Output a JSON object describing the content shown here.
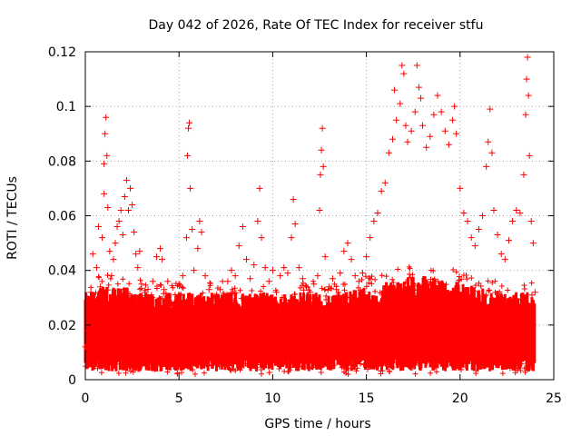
{
  "chart_data": {
    "type": "scatter",
    "title": "Day 042 of 2026, Rate Of TEC Index for receiver stfu",
    "xlabel": "GPS time / hours",
    "ylabel": "ROTI / TECUs",
    "xlim": [
      0,
      25
    ],
    "ylim": [
      0,
      0.12
    ],
    "x_ticks": [
      0,
      5,
      10,
      15,
      20,
      25
    ],
    "x_tick_labels": [
      "0",
      "5",
      "10",
      "15",
      "20",
      "25"
    ],
    "y_ticks": [
      0,
      0.02,
      0.04,
      0.06,
      0.08,
      0.1,
      0.12
    ],
    "y_tick_labels": [
      "0",
      "0.02",
      "0.04",
      "0.06",
      "0.08",
      "0.1",
      "0.12"
    ],
    "grid": true,
    "marker": "+",
    "series": [
      {
        "name": "ROTI",
        "color": "#ff0000",
        "points": [
          [
            0.0,
            0.012
          ],
          [
            0.1,
            0.018
          ],
          [
            0.2,
            0.025
          ],
          [
            0.3,
            0.032
          ],
          [
            0.4,
            0.046
          ],
          [
            0.5,
            0.028
          ],
          [
            0.6,
            0.041
          ],
          [
            0.7,
            0.056
          ],
          [
            0.8,
            0.034
          ],
          [
            0.9,
            0.052
          ],
          [
            1.0,
            0.068
          ],
          [
            1.0,
            0.079
          ],
          [
            1.05,
            0.09
          ],
          [
            1.1,
            0.096
          ],
          [
            1.15,
            0.082
          ],
          [
            1.2,
            0.063
          ],
          [
            1.3,
            0.047
          ],
          [
            1.4,
            0.038
          ],
          [
            1.5,
            0.044
          ],
          [
            1.6,
            0.05
          ],
          [
            1.7,
            0.056
          ],
          [
            1.8,
            0.058
          ],
          [
            1.9,
            0.062
          ],
          [
            2.0,
            0.053
          ],
          [
            2.1,
            0.067
          ],
          [
            2.2,
            0.073
          ],
          [
            2.3,
            0.062
          ],
          [
            2.4,
            0.07
          ],
          [
            2.5,
            0.064
          ],
          [
            2.6,
            0.054
          ],
          [
            2.7,
            0.046
          ],
          [
            2.8,
            0.041
          ],
          [
            2.9,
            0.047
          ],
          [
            3.0,
            0.035
          ],
          [
            3.2,
            0.032
          ],
          [
            3.4,
            0.03
          ],
          [
            3.6,
            0.036
          ],
          [
            3.8,
            0.045
          ],
          [
            4.0,
            0.048
          ],
          [
            4.1,
            0.044
          ],
          [
            4.2,
            0.033
          ],
          [
            4.4,
            0.036
          ],
          [
            4.6,
            0.028
          ],
          [
            4.8,
            0.025
          ],
          [
            5.0,
            0.031
          ],
          [
            5.2,
            0.038
          ],
          [
            5.4,
            0.052
          ],
          [
            5.45,
            0.082
          ],
          [
            5.5,
            0.092
          ],
          [
            5.55,
            0.094
          ],
          [
            5.6,
            0.07
          ],
          [
            5.7,
            0.055
          ],
          [
            5.8,
            0.04
          ],
          [
            6.0,
            0.048
          ],
          [
            6.1,
            0.058
          ],
          [
            6.2,
            0.054
          ],
          [
            6.4,
            0.038
          ],
          [
            6.6,
            0.033
          ],
          [
            6.8,
            0.029
          ],
          [
            7.0,
            0.027
          ],
          [
            7.2,
            0.033
          ],
          [
            7.4,
            0.031
          ],
          [
            7.6,
            0.036
          ],
          [
            7.8,
            0.04
          ],
          [
            8.0,
            0.038
          ],
          [
            8.2,
            0.049
          ],
          [
            8.4,
            0.056
          ],
          [
            8.6,
            0.044
          ],
          [
            8.8,
            0.037
          ],
          [
            9.0,
            0.042
          ],
          [
            9.2,
            0.058
          ],
          [
            9.3,
            0.07
          ],
          [
            9.4,
            0.052
          ],
          [
            9.6,
            0.041
          ],
          [
            9.8,
            0.036
          ],
          [
            10.0,
            0.04
          ],
          [
            10.2,
            0.032
          ],
          [
            10.4,
            0.038
          ],
          [
            10.6,
            0.041
          ],
          [
            10.8,
            0.039
          ],
          [
            11.0,
            0.052
          ],
          [
            11.1,
            0.066
          ],
          [
            11.2,
            0.057
          ],
          [
            11.4,
            0.041
          ],
          [
            11.6,
            0.037
          ],
          [
            11.8,
            0.034
          ],
          [
            12.0,
            0.032
          ],
          [
            12.2,
            0.035
          ],
          [
            12.4,
            0.038
          ],
          [
            12.5,
            0.062
          ],
          [
            12.55,
            0.075
          ],
          [
            12.6,
            0.084
          ],
          [
            12.65,
            0.092
          ],
          [
            12.7,
            0.078
          ],
          [
            12.8,
            0.045
          ],
          [
            13.0,
            0.034
          ],
          [
            13.2,
            0.037
          ],
          [
            13.4,
            0.033
          ],
          [
            13.6,
            0.039
          ],
          [
            13.8,
            0.047
          ],
          [
            14.0,
            0.05
          ],
          [
            14.2,
            0.044
          ],
          [
            14.4,
            0.038
          ],
          [
            14.6,
            0.036
          ],
          [
            14.8,
            0.039
          ],
          [
            15.0,
            0.045
          ],
          [
            15.2,
            0.052
          ],
          [
            15.4,
            0.058
          ],
          [
            15.6,
            0.061
          ],
          [
            15.8,
            0.069
          ],
          [
            16.0,
            0.072
          ],
          [
            16.2,
            0.083
          ],
          [
            16.4,
            0.088
          ],
          [
            16.5,
            0.106
          ],
          [
            16.6,
            0.095
          ],
          [
            16.8,
            0.101
          ],
          [
            16.9,
            0.115
          ],
          [
            17.0,
            0.112
          ],
          [
            17.1,
            0.093
          ],
          [
            17.2,
            0.087
          ],
          [
            17.4,
            0.091
          ],
          [
            17.6,
            0.098
          ],
          [
            17.7,
            0.115
          ],
          [
            17.8,
            0.107
          ],
          [
            17.9,
            0.103
          ],
          [
            18.0,
            0.093
          ],
          [
            18.2,
            0.085
          ],
          [
            18.4,
            0.089
          ],
          [
            18.6,
            0.097
          ],
          [
            18.8,
            0.104
          ],
          [
            19.0,
            0.098
          ],
          [
            19.2,
            0.091
          ],
          [
            19.4,
            0.086
          ],
          [
            19.6,
            0.095
          ],
          [
            19.7,
            0.1
          ],
          [
            19.8,
            0.09
          ],
          [
            20.0,
            0.07
          ],
          [
            20.2,
            0.061
          ],
          [
            20.4,
            0.058
          ],
          [
            20.6,
            0.052
          ],
          [
            20.8,
            0.049
          ],
          [
            21.0,
            0.055
          ],
          [
            21.2,
            0.06
          ],
          [
            21.4,
            0.078
          ],
          [
            21.5,
            0.087
          ],
          [
            21.6,
            0.099
          ],
          [
            21.7,
            0.083
          ],
          [
            21.8,
            0.062
          ],
          [
            22.0,
            0.053
          ],
          [
            22.2,
            0.046
          ],
          [
            22.4,
            0.044
          ],
          [
            22.6,
            0.051
          ],
          [
            22.8,
            0.058
          ],
          [
            23.0,
            0.062
          ],
          [
            23.2,
            0.061
          ],
          [
            23.4,
            0.075
          ],
          [
            23.5,
            0.097
          ],
          [
            23.55,
            0.11
          ],
          [
            23.6,
            0.118
          ],
          [
            23.65,
            0.104
          ],
          [
            23.7,
            0.082
          ],
          [
            23.8,
            0.058
          ],
          [
            23.9,
            0.05
          ],
          [
            24.0,
            0.032
          ]
        ]
      }
    ]
  }
}
